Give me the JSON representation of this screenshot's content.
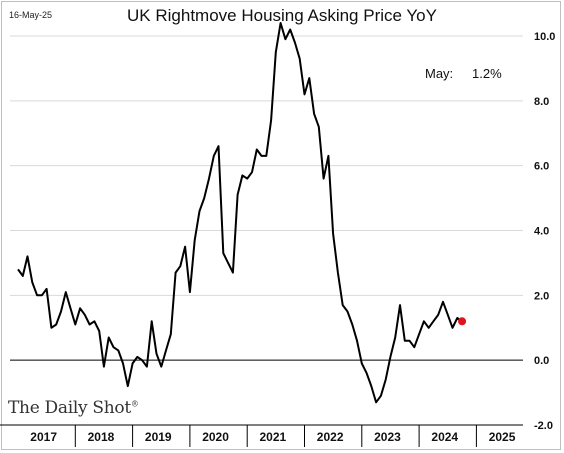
{
  "header": {
    "date_stamp": "16-May-25",
    "title": "UK Rightmove Housing Asking Price YoY"
  },
  "brand": {
    "name": "The Daily Shot",
    "mark": "®"
  },
  "annotation": {
    "label": "May:",
    "value": "1.2%"
  },
  "colors": {
    "line": "#000000",
    "last_point": "#e0141e",
    "grid": "#d9d9d9",
    "zero_line": "#000000"
  },
  "chart_data": {
    "type": "line",
    "title": "UK Rightmove Housing Asking Price YoY",
    "x_start": "2017-01",
    "frequency": "monthly",
    "series": [
      {
        "values": [
          2.8,
          2.6,
          3.2,
          2.4,
          2.0,
          2.0,
          2.2,
          1.0,
          1.1,
          1.5,
          2.1,
          1.6,
          1.1,
          1.6,
          1.4,
          1.1,
          1.2,
          0.9,
          -0.2,
          0.7,
          0.4,
          0.3,
          -0.1,
          -0.8,
          -0.1,
          0.1,
          0.0,
          -0.2,
          1.2,
          0.2,
          -0.2,
          0.3,
          0.8,
          2.7,
          2.9,
          3.5,
          2.1,
          3.7,
          4.6,
          5.0,
          5.6,
          6.3,
          6.6,
          3.3,
          3.0,
          2.7,
          5.1,
          5.7,
          5.6,
          5.8,
          6.5,
          6.3,
          6.3,
          7.4,
          9.5,
          10.4,
          9.9,
          10.2,
          9.8,
          9.3,
          8.2,
          8.7,
          7.6,
          7.2,
          5.6,
          6.3,
          3.9,
          2.7,
          1.7,
          1.5,
          1.1,
          0.6,
          -0.1,
          -0.4,
          -0.8,
          -1.3,
          -1.1,
          -0.6,
          0.1,
          0.7,
          1.7,
          0.6,
          0.6,
          0.4,
          0.8,
          1.2,
          1.0,
          1.2,
          1.4,
          1.8,
          1.4,
          1.0,
          1.3,
          1.2
        ]
      }
    ],
    "x_ticks": [
      "2017",
      "2018",
      "2019",
      "2020",
      "2021",
      "2022",
      "2023",
      "2024",
      "2025"
    ],
    "y_ticks": [
      "10.0",
      "8.0",
      "6.0",
      "4.0",
      "2.0",
      "0.0",
      "-2.0"
    ],
    "ylim": [
      -2.0,
      10.0
    ],
    "grid": "horizontal",
    "y_axis_side": "right"
  }
}
